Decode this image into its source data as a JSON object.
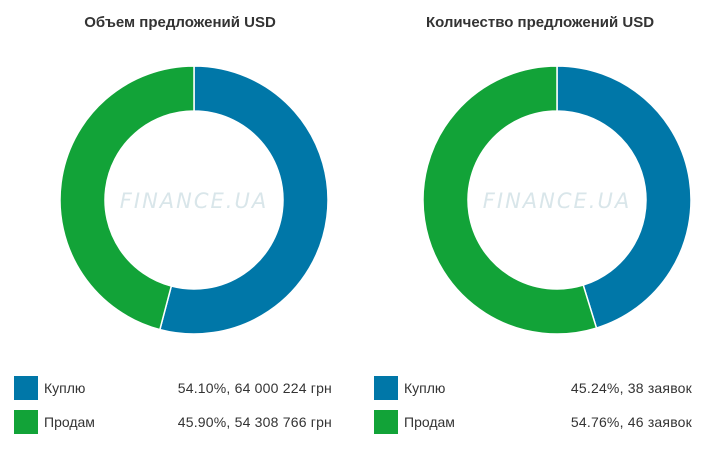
{
  "watermark": "FINANCE.UA",
  "colors": {
    "buy": "#0077a8",
    "sell": "#12a338",
    "watermark": "#d9e6ea"
  },
  "chart_data": [
    {
      "type": "pie",
      "title": "Объем предложений USD",
      "slices": [
        {
          "name": "Куплю",
          "percent": 54.1,
          "label": "54.10%, 64 000 224 грн"
        },
        {
          "name": "Продам",
          "percent": 45.9,
          "label": "45.90%, 54 308 766 грн"
        }
      ]
    },
    {
      "type": "pie",
      "title": "Количество предложений USD",
      "slices": [
        {
          "name": "Куплю",
          "percent": 45.24,
          "label": "45.24%, 38 заявок"
        },
        {
          "name": "Продам",
          "percent": 54.76,
          "label": "54.76%, 46 заявок"
        }
      ]
    }
  ]
}
